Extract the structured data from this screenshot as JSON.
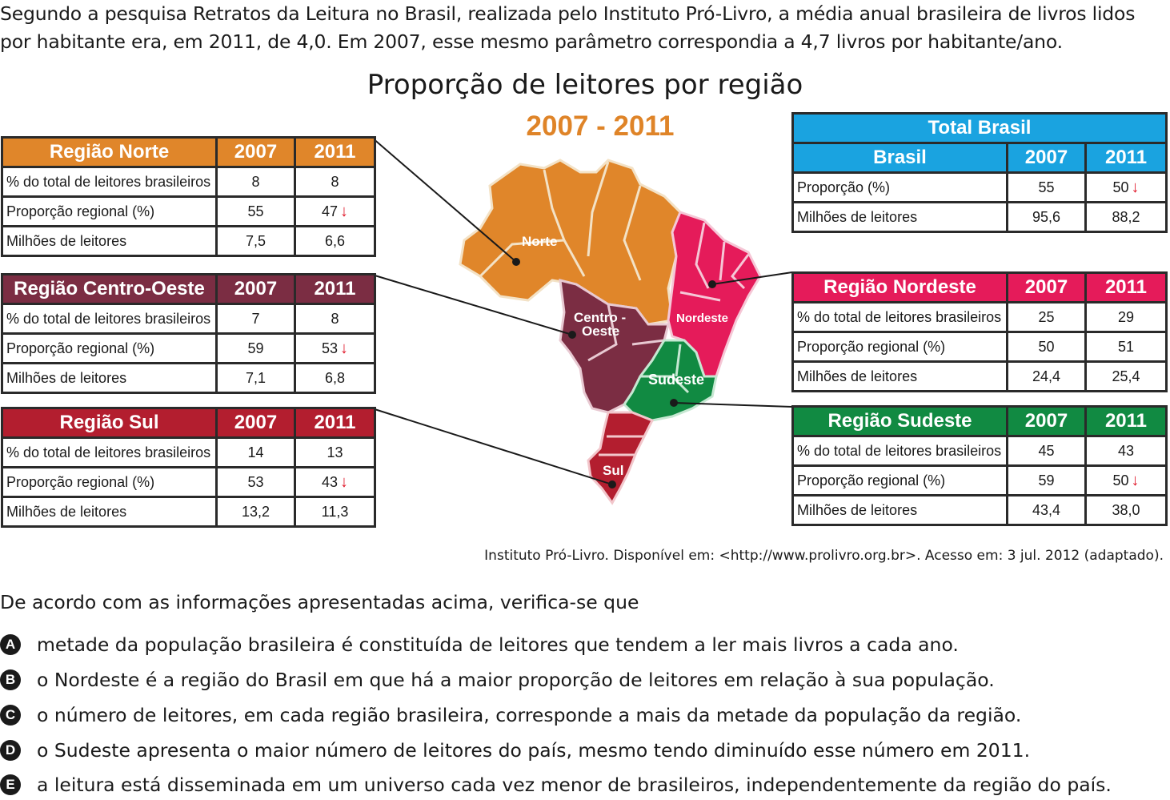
{
  "intro": "Segundo a pesquisa Retratos da Leitura no Brasil, realizada pelo Instituto Pró-Livro, a média anual brasileira de livros lidos por habitante era, em 2011, de 4,0. Em 2007, esse mesmo parâmetro correspondia a 4,7 livros por habitante/ano.",
  "chart_title": "Proporção de leitores por região",
  "chart_subtitle": "2007 - 2011",
  "year_a": "2007",
  "year_b": "2011",
  "down_arrow": "↓",
  "colors": {
    "norte": "#e0862a",
    "centro_oeste": "#7b2d43",
    "sul": "#b31e2f",
    "nordeste": "#e51b5a",
    "sudeste": "#118a42",
    "brasil": "#1aa3e0"
  },
  "tables": {
    "norte": {
      "title": "Região Norte",
      "rows": [
        {
          "label": "% do total de leitores brasileiros",
          "v2007": "8",
          "v2011": "8",
          "down": false
        },
        {
          "label": "Proporção regional (%)",
          "v2007": "55",
          "v2011": "47",
          "down": true
        },
        {
          "label": "Milhões de leitores",
          "v2007": "7,5",
          "v2011": "6,6",
          "down": false
        }
      ]
    },
    "centro_oeste": {
      "title": "Região Centro-Oeste",
      "rows": [
        {
          "label": "% do total de leitores brasileiros",
          "v2007": "7",
          "v2011": "8",
          "down": false
        },
        {
          "label": "Proporção regional (%)",
          "v2007": "59",
          "v2011": "53",
          "down": true
        },
        {
          "label": "Milhões de leitores",
          "v2007": "7,1",
          "v2011": "6,8",
          "down": false
        }
      ]
    },
    "sul": {
      "title": "Região Sul",
      "rows": [
        {
          "label": "% do total de leitores brasileiros",
          "v2007": "14",
          "v2011": "13",
          "down": false
        },
        {
          "label": "Proporção regional (%)",
          "v2007": "53",
          "v2011": "43",
          "down": true
        },
        {
          "label": "Milhões de leitores",
          "v2007": "13,2",
          "v2011": "11,3",
          "down": false
        }
      ]
    },
    "brasil": {
      "title": "Total Brasil",
      "subtitle": "Brasil",
      "rows": [
        {
          "label": "Proporção (%)",
          "v2007": "55",
          "v2011": "50",
          "down": true
        },
        {
          "label": "Milhões de leitores",
          "v2007": "95,6",
          "v2011": "88,2",
          "down": false
        }
      ]
    },
    "nordeste": {
      "title": "Região Nordeste",
      "rows": [
        {
          "label": "% do total de leitores brasileiros",
          "v2007": "25",
          "v2011": "29",
          "down": false
        },
        {
          "label": "Proporção regional (%)",
          "v2007": "50",
          "v2011": "51",
          "down": false
        },
        {
          "label": "Milhões de leitores",
          "v2007": "24,4",
          "v2011": "25,4",
          "down": false
        }
      ]
    },
    "sudeste": {
      "title": "Região Sudeste",
      "rows": [
        {
          "label": "% do total de leitores brasileiros",
          "v2007": "45",
          "v2011": "43",
          "down": false
        },
        {
          "label": "Proporção regional (%)",
          "v2007": "59",
          "v2011": "50",
          "down": true
        },
        {
          "label": "Milhões de leitores",
          "v2007": "43,4",
          "v2011": "38,0",
          "down": false
        }
      ]
    }
  },
  "map_labels": {
    "norte": "Norte",
    "centro_oeste_1": "Centro -",
    "centro_oeste_2": "Oeste",
    "nordeste": "Nordeste",
    "sudeste": "Sudeste",
    "sul": "Sul"
  },
  "source": "Instituto Pró-Livro. Disponível em: <http://www.prolivro.org.br>. Acesso em: 3 jul. 2012 (adaptado).",
  "question": "De acordo com as informações apresentadas acima, verifica-se que",
  "options": [
    {
      "letter": "A",
      "text": "metade da população brasileira é constituída de leitores que tendem a ler mais livros a cada ano."
    },
    {
      "letter": "B",
      "text": "o Nordeste é a região do Brasil em que há a maior proporção de leitores em relação à sua população."
    },
    {
      "letter": "C",
      "text": "o número de leitores, em cada região brasileira, corresponde a mais da metade da população da região."
    },
    {
      "letter": "D",
      "text": "o Sudeste apresenta o maior número de leitores do país, mesmo tendo diminuído esse número em 2011."
    },
    {
      "letter": "E",
      "text": "a leitura está disseminada em um universo cada vez menor de brasileiros, independentemente da região do país."
    }
  ]
}
